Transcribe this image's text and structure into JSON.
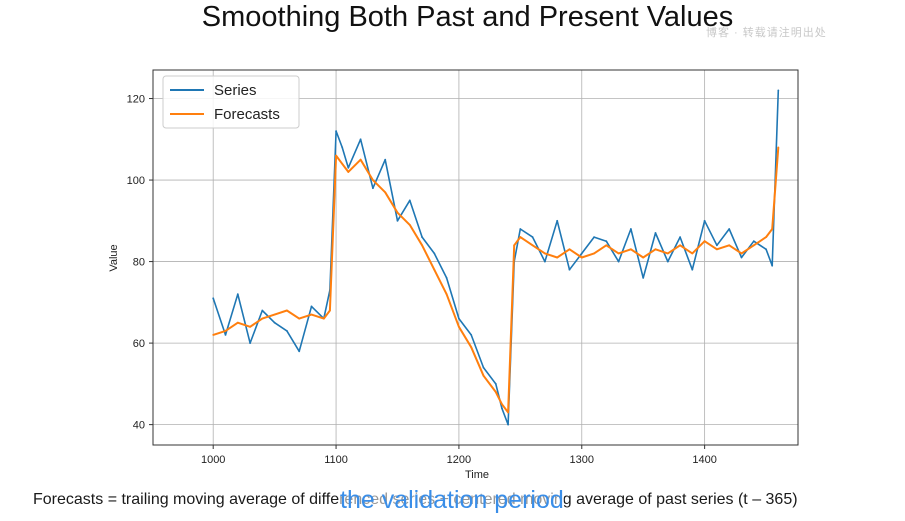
{
  "slide": {
    "title": "Smoothing Both Past and Present Values",
    "caption": "Forecasts = trailing moving average of differenced series + centered moving average of past series (t – 365)",
    "subtitle": "the validation period",
    "watermark_top": "博客 · 转载请注明出处"
  },
  "colors": {
    "series": "#1f77b4",
    "forecasts": "#ff7f0e",
    "grid": "#b0b0b0",
    "frame": "#333333"
  },
  "chart_data": {
    "type": "line",
    "xlabel": "Time",
    "ylabel": "Value",
    "xlim": [
      951,
      1476
    ],
    "ylim": [
      35,
      127
    ],
    "xticks": [
      1000,
      1100,
      1200,
      1300,
      1400
    ],
    "yticks": [
      40,
      60,
      80,
      100,
      120
    ],
    "grid": true,
    "legend_position": "top-left",
    "x": [
      1000,
      1010,
      1020,
      1030,
      1040,
      1050,
      1060,
      1070,
      1080,
      1090,
      1095,
      1100,
      1105,
      1110,
      1120,
      1130,
      1140,
      1150,
      1160,
      1170,
      1180,
      1190,
      1200,
      1210,
      1220,
      1230,
      1235,
      1240,
      1245,
      1250,
      1260,
      1270,
      1280,
      1290,
      1300,
      1310,
      1320,
      1330,
      1340,
      1350,
      1360,
      1370,
      1380,
      1390,
      1400,
      1410,
      1420,
      1430,
      1440,
      1450,
      1455,
      1460
    ],
    "series": [
      {
        "name": "Series",
        "values": [
          71,
          62,
          72,
          60,
          68,
          65,
          63,
          58,
          69,
          66,
          73,
          112,
          108,
          103,
          110,
          98,
          105,
          90,
          95,
          86,
          82,
          76,
          66,
          62,
          54,
          50,
          44,
          40,
          80,
          88,
          86,
          80,
          90,
          78,
          82,
          86,
          85,
          80,
          88,
          76,
          87,
          80,
          86,
          78,
          90,
          84,
          88,
          81,
          85,
          83,
          79,
          122
        ]
      },
      {
        "name": "Forecasts",
        "values": [
          62,
          63,
          65,
          64,
          66,
          67,
          68,
          66,
          67,
          66,
          68,
          106,
          104,
          102,
          105,
          100,
          97,
          92,
          89,
          84,
          78,
          72,
          64,
          59,
          52,
          48,
          45,
          43,
          84,
          86,
          84,
          82,
          81,
          83,
          81,
          82,
          84,
          82,
          83,
          81,
          83,
          82,
          84,
          82,
          85,
          83,
          84,
          82,
          84,
          86,
          88,
          108
        ]
      }
    ]
  }
}
